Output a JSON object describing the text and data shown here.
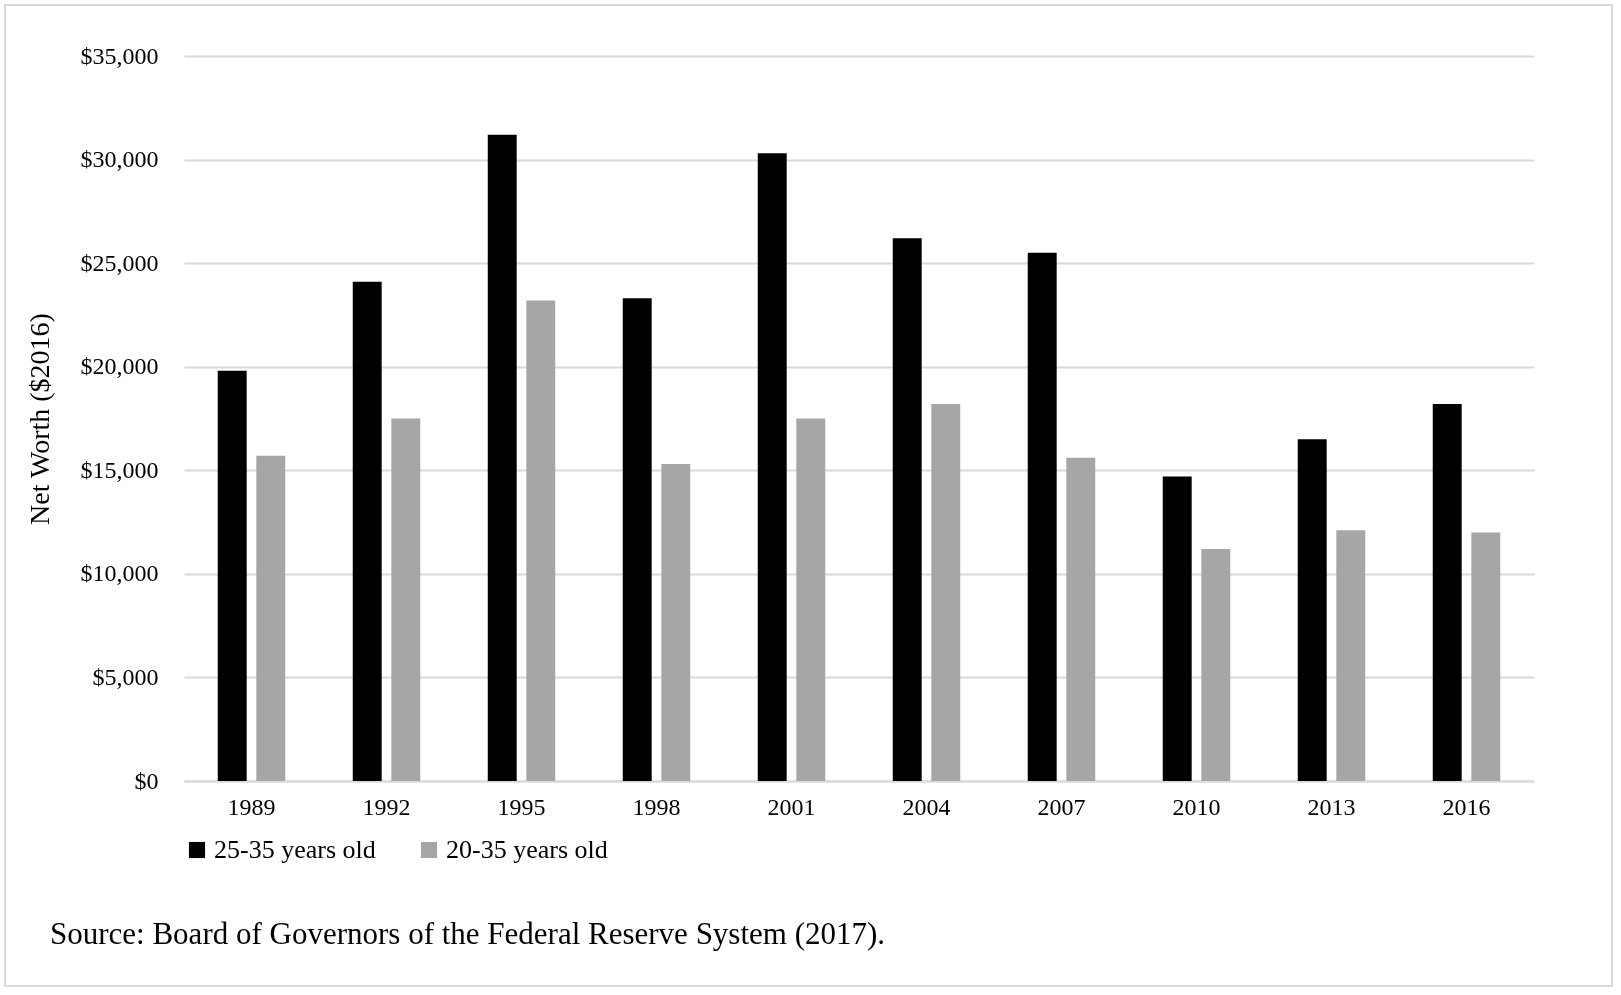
{
  "chart_data": {
    "type": "bar",
    "ylabel": "Net Worth ($2016)",
    "categories": [
      "1989",
      "1992",
      "1995",
      "1998",
      "2001",
      "2004",
      "2007",
      "2010",
      "2013",
      "2016"
    ],
    "series": [
      {
        "name": "25-35 years old",
        "color": "#000000",
        "values": [
          19800,
          24100,
          31200,
          23300,
          30300,
          26200,
          25500,
          14700,
          16500,
          18200
        ]
      },
      {
        "name": "20-35 years old",
        "color": "#a6a6a6",
        "values": [
          15700,
          17500,
          23200,
          15300,
          17500,
          18200,
          15600,
          11200,
          12100,
          12000
        ]
      }
    ],
    "ylim": [
      0,
      35000
    ],
    "yticks": [
      {
        "value": 0,
        "label": "$0"
      },
      {
        "value": 5000,
        "label": "$5,000"
      },
      {
        "value": 10000,
        "label": "$10,000"
      },
      {
        "value": 15000,
        "label": "$15,000"
      },
      {
        "value": 20000,
        "label": "$20,000"
      },
      {
        "value": 25000,
        "label": "$25,000"
      },
      {
        "value": 30000,
        "label": "$30,000"
      },
      {
        "value": 35000,
        "label": "$35,000"
      }
    ],
    "grid": "y",
    "legend": "bottom",
    "annotations": [
      "Source: Board of Governors of the Federal Reserve System (2017)."
    ]
  }
}
